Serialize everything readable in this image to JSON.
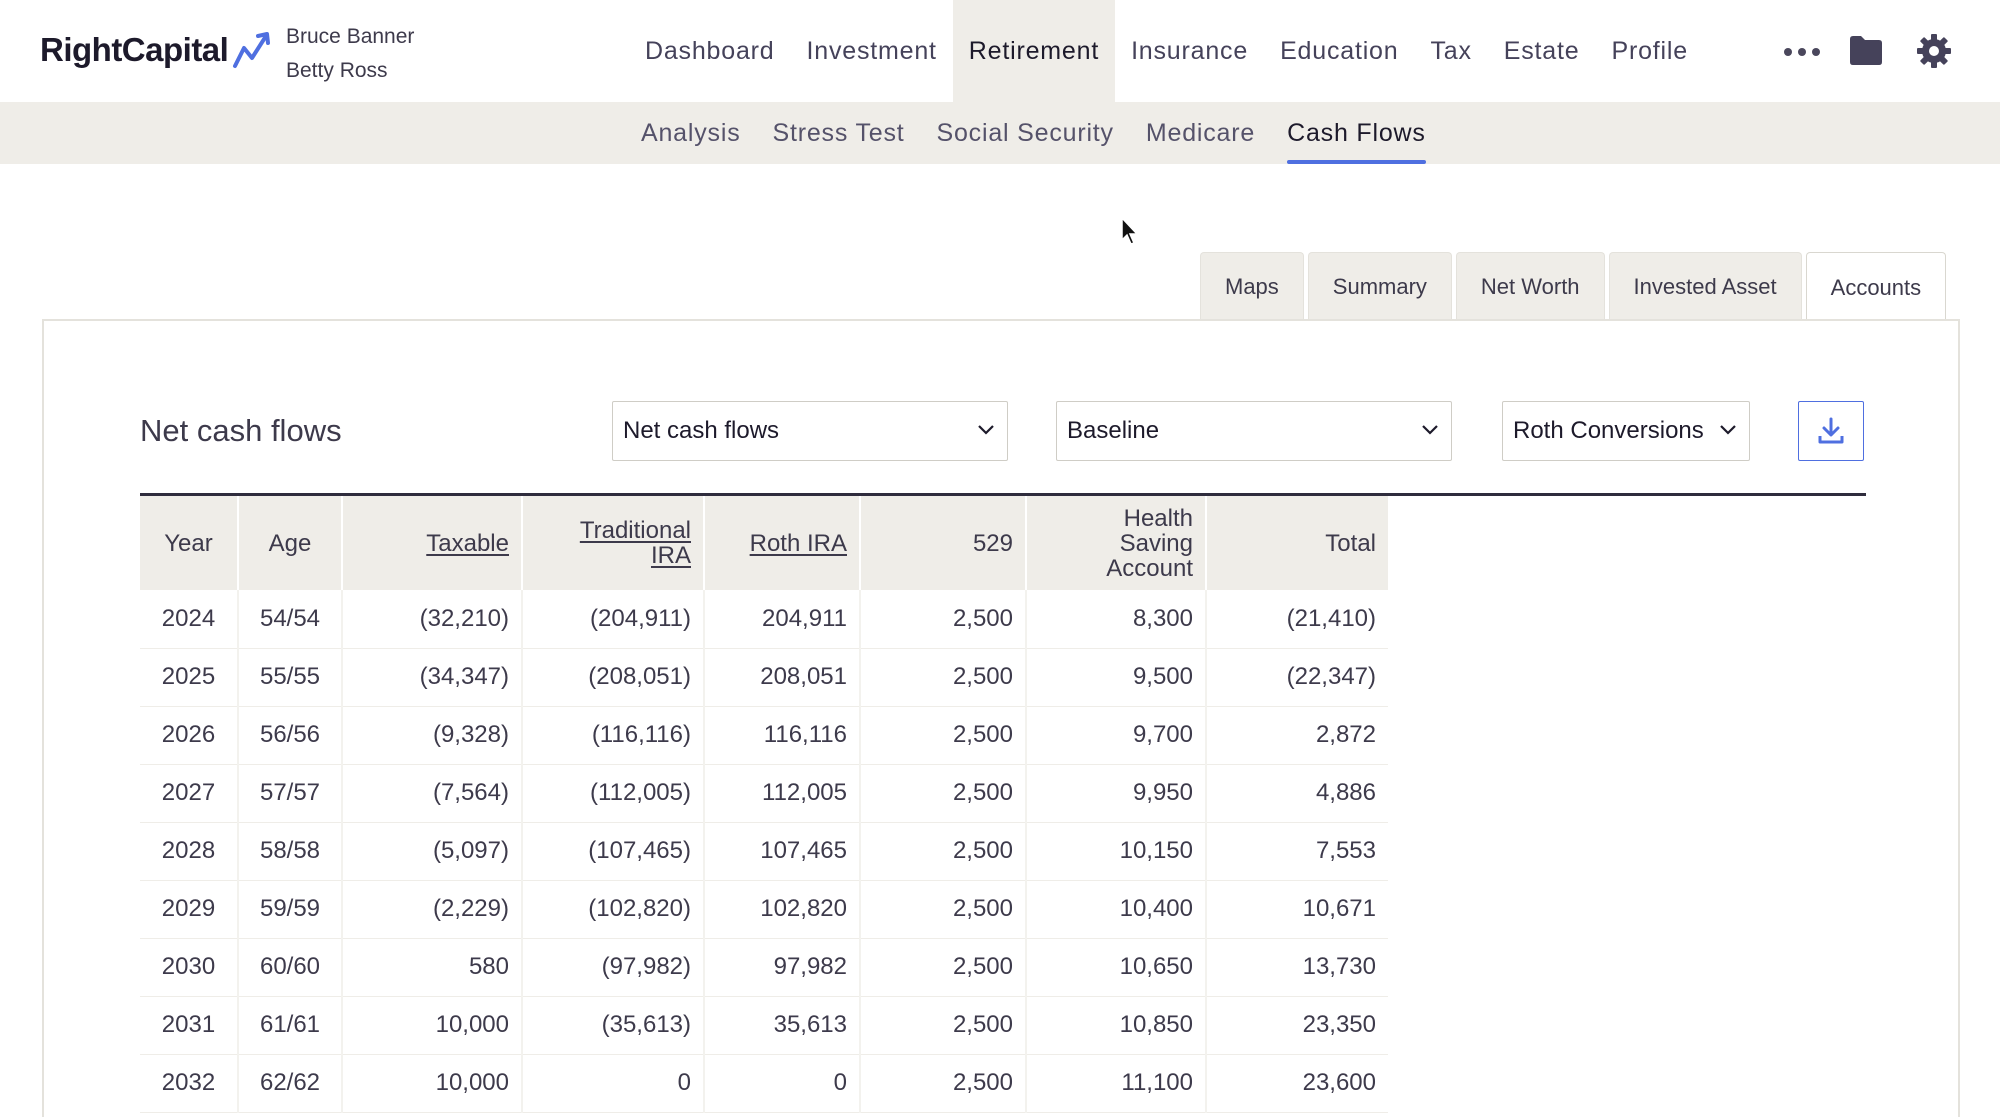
{
  "brand": {
    "name": "RightCapital",
    "accent": "#4f6fe0"
  },
  "clients": [
    "Bruce Banner",
    "Betty Ross"
  ],
  "main_nav": {
    "items": [
      "Dashboard",
      "Investment",
      "Retirement",
      "Insurance",
      "Education",
      "Tax",
      "Estate",
      "Profile"
    ],
    "active": "Retirement"
  },
  "header_icons": [
    "more-icon",
    "folder-icon",
    "gear-icon"
  ],
  "sub_nav": {
    "items": [
      "Analysis",
      "Stress Test",
      "Social Security",
      "Medicare",
      "Cash Flows"
    ],
    "active": "Cash Flows"
  },
  "view_tabs": {
    "items": [
      "Maps",
      "Summary",
      "Net Worth",
      "Invested Asset",
      "Accounts"
    ],
    "active": "Accounts"
  },
  "panel": {
    "title": "Net cash flows",
    "select_type": "Net cash flows",
    "select_scenario": "Baseline",
    "select_strategy": "Roth Conversions",
    "download_icon": "download-icon"
  },
  "table": {
    "headers": {
      "year": "Year",
      "age": "Age",
      "taxable": "Taxable",
      "trad_1": "Traditional",
      "trad_2": "IRA",
      "roth": "Roth IRA",
      "p529": "529",
      "hsa_1": "Health",
      "hsa_2": "Saving",
      "hsa_3": "Account",
      "total": "Total"
    },
    "rows": [
      [
        "2024",
        "54/54",
        "(32,210)",
        "(204,911)",
        "204,911",
        "2,500",
        "8,300",
        "(21,410)"
      ],
      [
        "2025",
        "55/55",
        "(34,347)",
        "(208,051)",
        "208,051",
        "2,500",
        "9,500",
        "(22,347)"
      ],
      [
        "2026",
        "56/56",
        "(9,328)",
        "(116,116)",
        "116,116",
        "2,500",
        "9,700",
        "2,872"
      ],
      [
        "2027",
        "57/57",
        "(7,564)",
        "(112,005)",
        "112,005",
        "2,500",
        "9,950",
        "4,886"
      ],
      [
        "2028",
        "58/58",
        "(5,097)",
        "(107,465)",
        "107,465",
        "2,500",
        "10,150",
        "7,553"
      ],
      [
        "2029",
        "59/59",
        "(2,229)",
        "(102,820)",
        "102,820",
        "2,500",
        "10,400",
        "10,671"
      ],
      [
        "2030",
        "60/60",
        "580",
        "(97,982)",
        "97,982",
        "2,500",
        "10,650",
        "13,730"
      ],
      [
        "2031",
        "61/61",
        "10,000",
        "(35,613)",
        "35,613",
        "2,500",
        "10,850",
        "23,350"
      ],
      [
        "2032",
        "62/62",
        "10,000",
        "0",
        "0",
        "2,500",
        "11,100",
        "23,600"
      ]
    ]
  }
}
